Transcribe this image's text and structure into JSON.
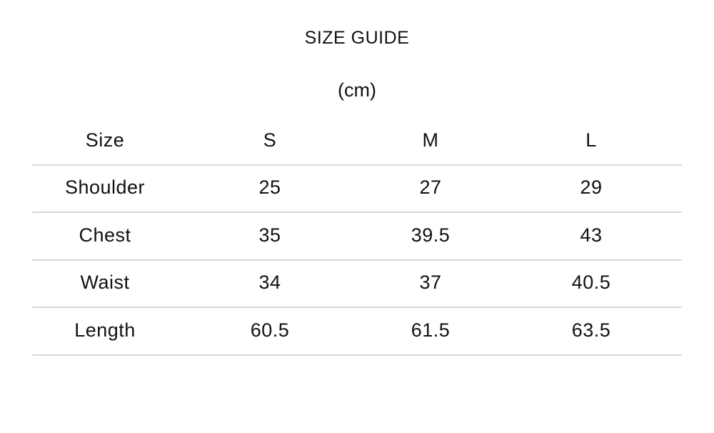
{
  "title": "SIZE GUIDE",
  "unit": "(cm)",
  "table": {
    "headers": [
      "Size",
      "S",
      "M",
      "L"
    ],
    "rows": [
      [
        "Shoulder",
        "25",
        "27",
        "29"
      ],
      [
        "Chest",
        "35",
        "39.5",
        "43"
      ],
      [
        "Waist",
        "34",
        "37",
        "40.5"
      ],
      [
        "Length",
        "60.5",
        "61.5",
        "63.5"
      ]
    ]
  },
  "colors": {
    "divider": "#d8d8d8",
    "text": "#111111"
  }
}
